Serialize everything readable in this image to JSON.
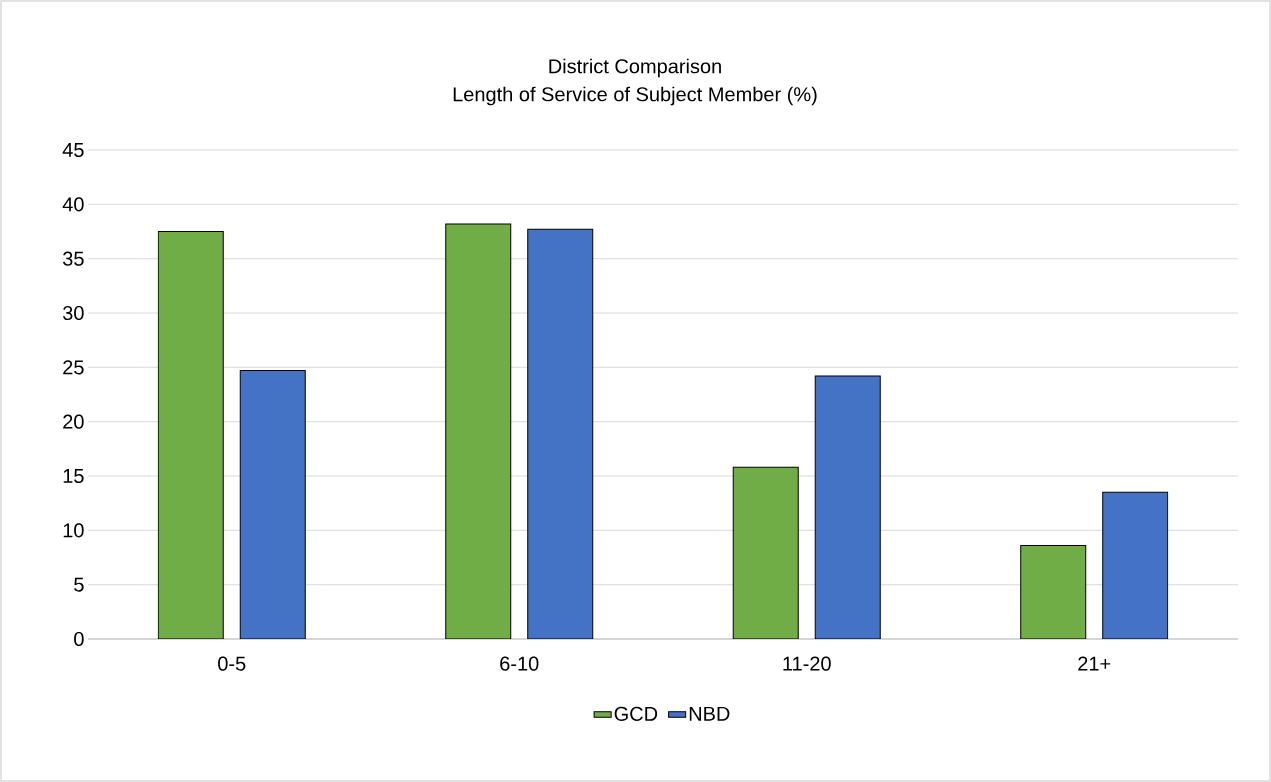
{
  "chart_data": {
    "type": "bar",
    "title": "District Comparison",
    "subtitle": "Length of Service of Subject Member (%)",
    "categories": [
      "0-5",
      "6-10",
      "11-20",
      "21+"
    ],
    "series": [
      {
        "name": "GCD",
        "color": "#70ad47",
        "values": [
          37.5,
          38.2,
          15.8,
          8.6
        ]
      },
      {
        "name": "NBD",
        "color": "#4472c4",
        "values": [
          24.7,
          37.7,
          24.2,
          13.5
        ]
      }
    ],
    "ylim": [
      0,
      45
    ],
    "yticks": [
      0,
      5,
      10,
      15,
      20,
      25,
      30,
      35,
      40,
      45
    ],
    "grid": "y",
    "legend": "bottom"
  }
}
